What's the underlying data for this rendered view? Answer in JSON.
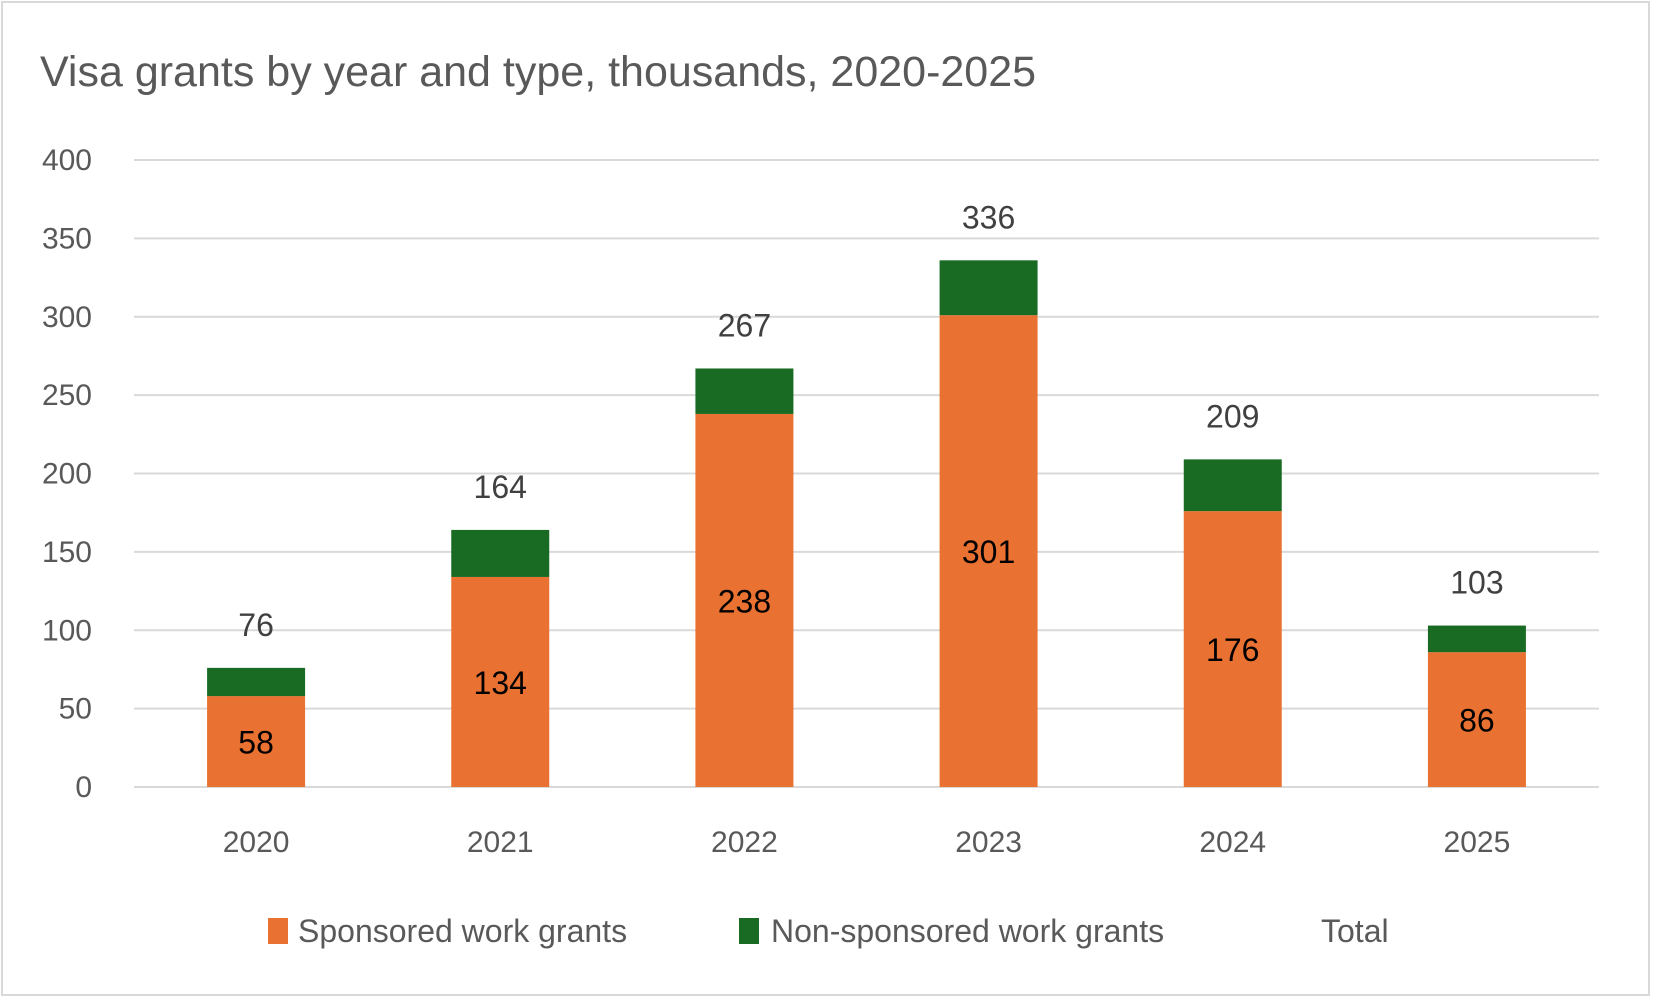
{
  "chart_data": {
    "type": "bar",
    "stacked": true,
    "title": "Visa grants by year and type, thousands, 2020-2025",
    "xlabel": "",
    "ylabel": "",
    "categories": [
      "2020",
      "2021",
      "2022",
      "2023",
      "2024",
      "2025"
    ],
    "series": [
      {
        "name": "Sponsored work grants",
        "color": "#E97132",
        "values": [
          58,
          134,
          238,
          301,
          176,
          86
        ]
      },
      {
        "name": "Non-sponsored work grants",
        "color": "#196B24",
        "values": [
          18,
          30,
          29,
          35,
          33,
          17
        ]
      }
    ],
    "total": {
      "name": "Total",
      "values": [
        76,
        164,
        267,
        336,
        209,
        103
      ]
    },
    "ylim": [
      0,
      400
    ],
    "yticks": [
      0,
      50,
      100,
      150,
      200,
      250,
      300,
      350,
      400
    ],
    "grid": true,
    "gridline_color": "#d9d9d9",
    "legend_position": "bottom",
    "data_labels": "sponsored inside bar, total above bar"
  }
}
